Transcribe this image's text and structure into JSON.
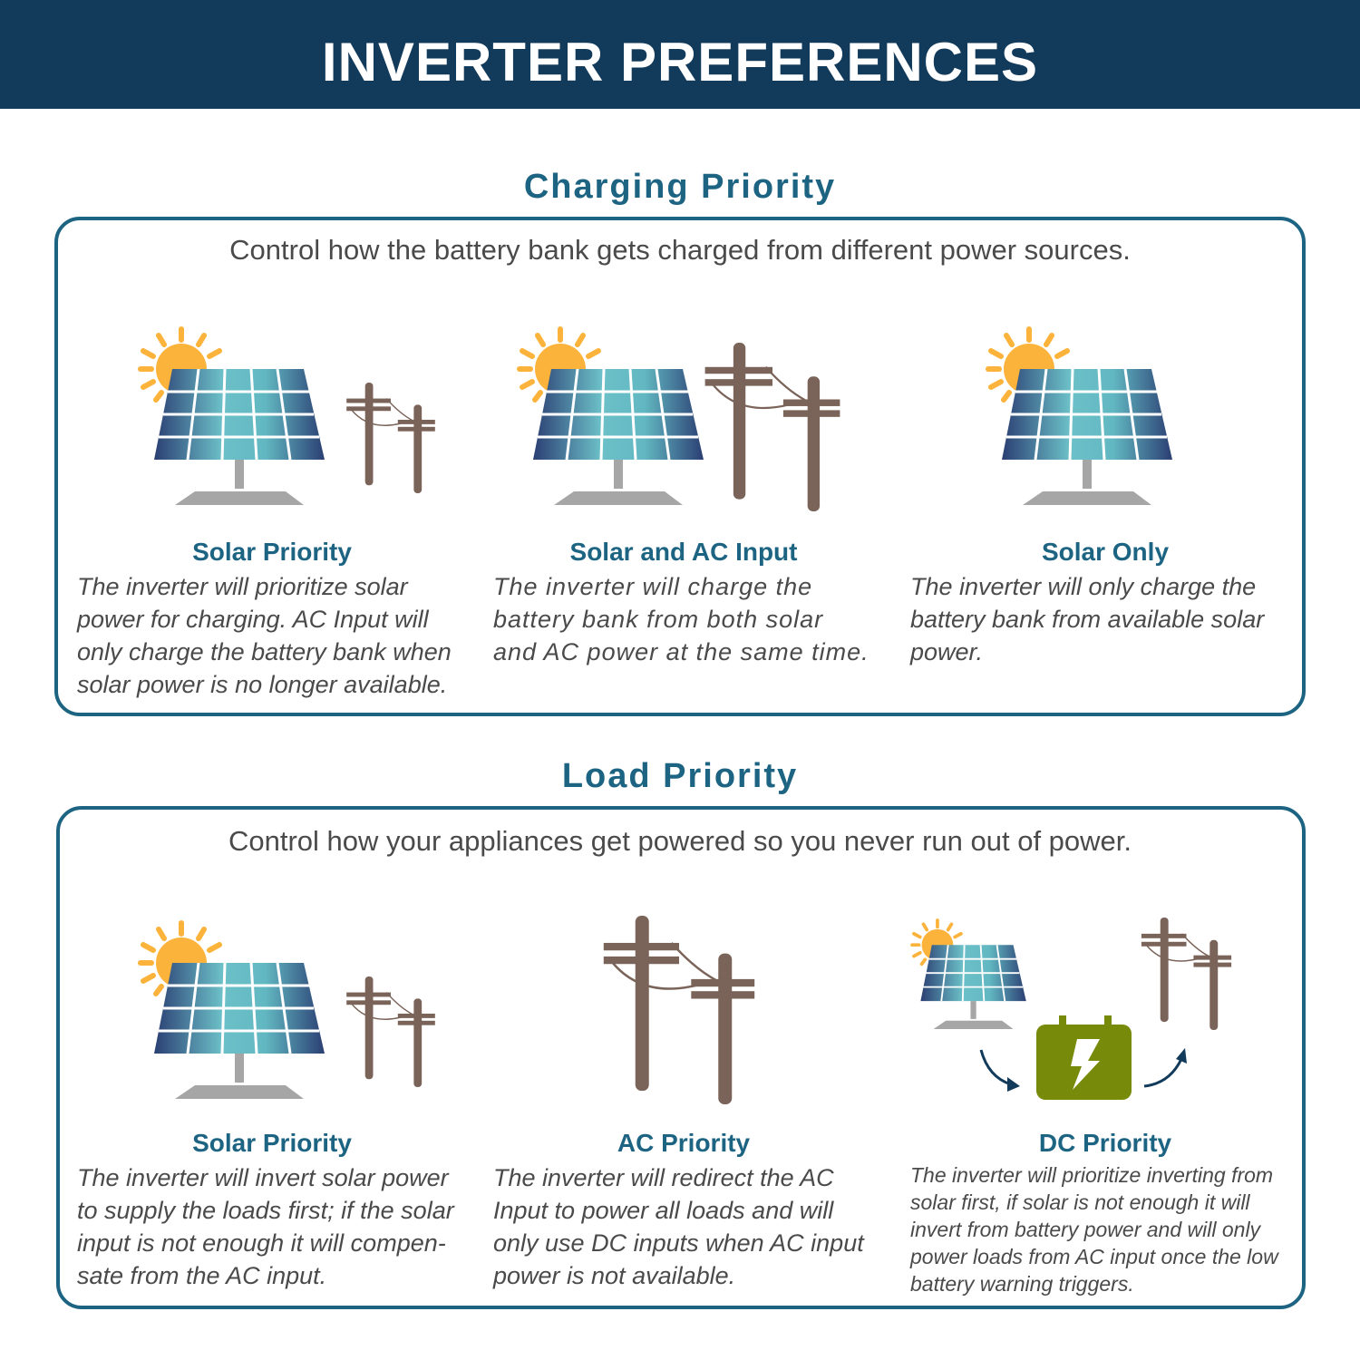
{
  "header": {
    "title": "INVERTER PREFERENCES"
  },
  "colors": {
    "header_bg": "#123a5a",
    "accent": "#1d6483",
    "sun": "#fbb33b",
    "pole": "#7a6358",
    "battery": "#788a0a",
    "text": "#4a4a4a"
  },
  "charging": {
    "title": "Charging Priority",
    "intro": "Control how the battery bank gets charged from different power sources.",
    "options": [
      {
        "title": "Solar Priority",
        "text": "The inverter will prioritize solar power for charging. AC Input will only charge the battery bank when solar power is no longer available.",
        "icons": [
          "sun-icon",
          "solar-panel-icon",
          "power-pole-icon"
        ]
      },
      {
        "title": "Solar and AC Input",
        "text": "The inverter will charge the battery bank from both solar and AC power at the same time.",
        "icons": [
          "sun-icon",
          "solar-panel-icon",
          "power-pole-icon"
        ]
      },
      {
        "title": "Solar Only",
        "text": "The inverter will only charge the battery bank from available solar power.",
        "icons": [
          "sun-icon",
          "solar-panel-icon"
        ]
      }
    ]
  },
  "load": {
    "title": "Load Priority",
    "intro": "Control how your appliances get powered so you never run out of power.",
    "options": [
      {
        "title": "Solar Priority",
        "text": "The inverter will invert solar power to supply the loads first; if the solar input is not enough it will compen-sate from the AC input.",
        "icons": [
          "sun-icon",
          "solar-panel-icon",
          "power-pole-icon"
        ]
      },
      {
        "title": "AC Priority",
        "text": "The inverter will redirect the AC Input to power all loads and will only use DC inputs when AC input power is not available.",
        "icons": [
          "power-pole-icon"
        ]
      },
      {
        "title": "DC Priority",
        "text": "The inverter will prioritize inverting from solar first, if solar is not enough it will invert from battery power and will only power loads from AC input once the low battery warning triggers.",
        "icons": [
          "sun-icon",
          "solar-panel-icon",
          "battery-icon",
          "power-pole-icon",
          "arrow-icon"
        ]
      }
    ]
  }
}
